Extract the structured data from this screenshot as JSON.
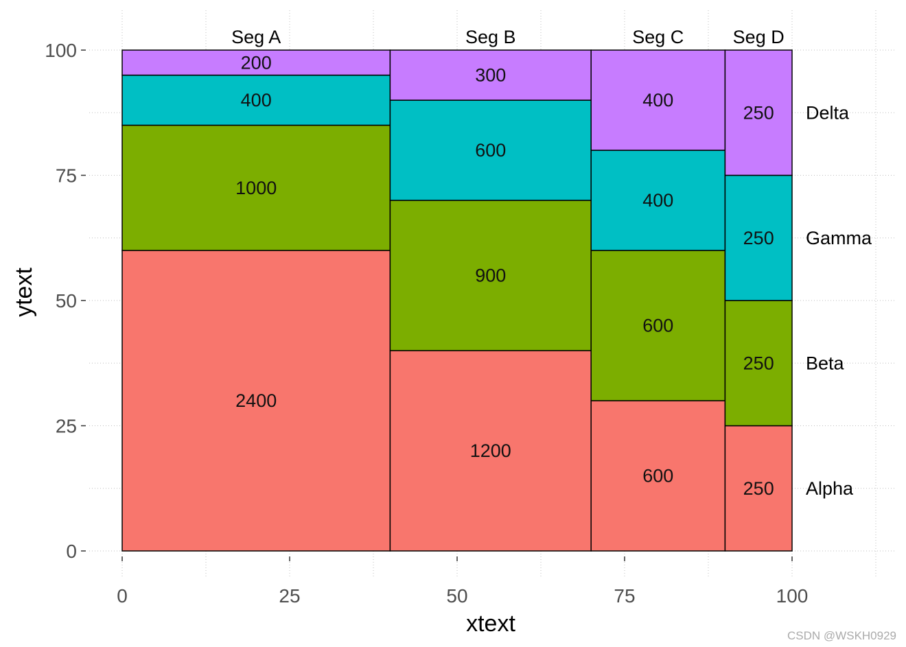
{
  "chart_data": {
    "type": "mosaic",
    "xlabel": "xtext",
    "ylabel": "ytext",
    "xlim": [
      0,
      100
    ],
    "ylim": [
      0,
      100
    ],
    "x_ticks": [
      "0",
      "25",
      "50",
      "75",
      "100"
    ],
    "y_ticks": [
      "0",
      "25",
      "50",
      "75",
      "100"
    ],
    "grid": true,
    "categories": [
      "Alpha",
      "Beta",
      "Gamma",
      "Delta"
    ],
    "colors": {
      "Alpha": "#F8766D",
      "Beta": "#7CAE00",
      "Gamma": "#00BFC4",
      "Delta": "#C77CFF"
    },
    "segments": [
      {
        "name": "Seg  A",
        "xmin": 0,
        "xmax": 40,
        "values": [
          2400,
          1000,
          400,
          200
        ]
      },
      {
        "name": "Seg  B",
        "xmin": 40,
        "xmax": 70,
        "values": [
          1200,
          900,
          600,
          300
        ]
      },
      {
        "name": "Seg  C",
        "xmin": 70,
        "xmax": 90,
        "values": [
          600,
          600,
          400,
          400
        ]
      },
      {
        "name": "Seg  D",
        "xmin": 90,
        "xmax": 100,
        "values": [
          250,
          250,
          250,
          250
        ]
      }
    ]
  },
  "watermark": "CSDN @WSKH0929"
}
